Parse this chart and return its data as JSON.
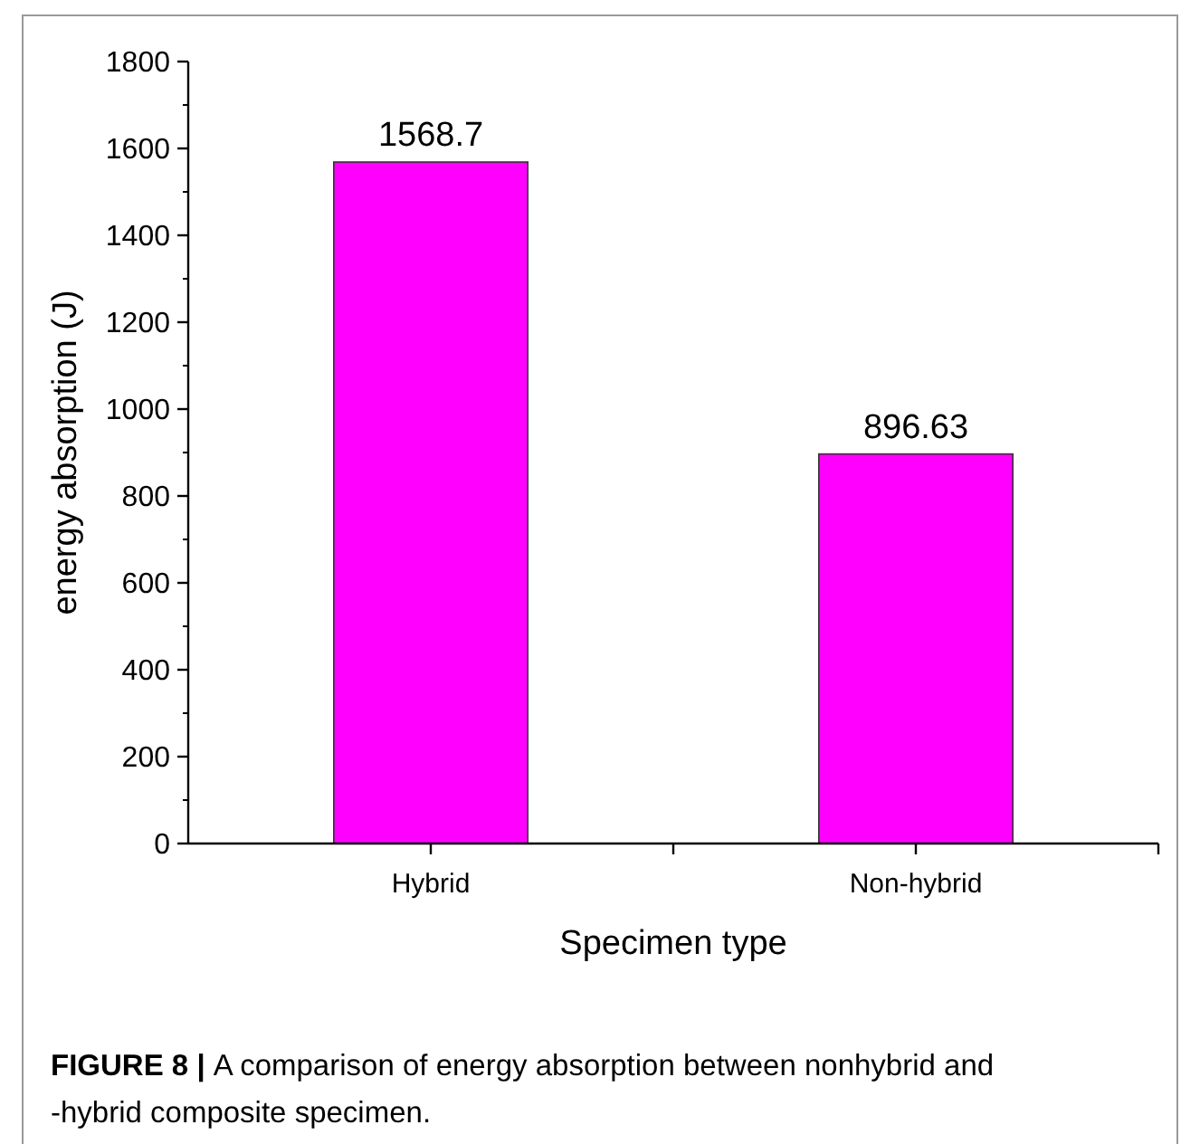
{
  "chart_data": {
    "type": "bar",
    "categories": [
      "Hybrid",
      "Non-hybrid"
    ],
    "values": [
      1568.7,
      896.63
    ],
    "color": "#ff00ff",
    "ylim": [
      0,
      1800
    ],
    "yticks": [
      0,
      200,
      400,
      600,
      800,
      1000,
      1200,
      1400,
      1600,
      1800
    ],
    "xlabel": "Specimen type",
    "ylabel": "energy absorption (J)",
    "data_labels": true,
    "grid": false,
    "annotations": [
      "FIGURE 8 |",
      "A comparison of energy absorption between nonhybrid and -hybrid composite specimen."
    ]
  }
}
